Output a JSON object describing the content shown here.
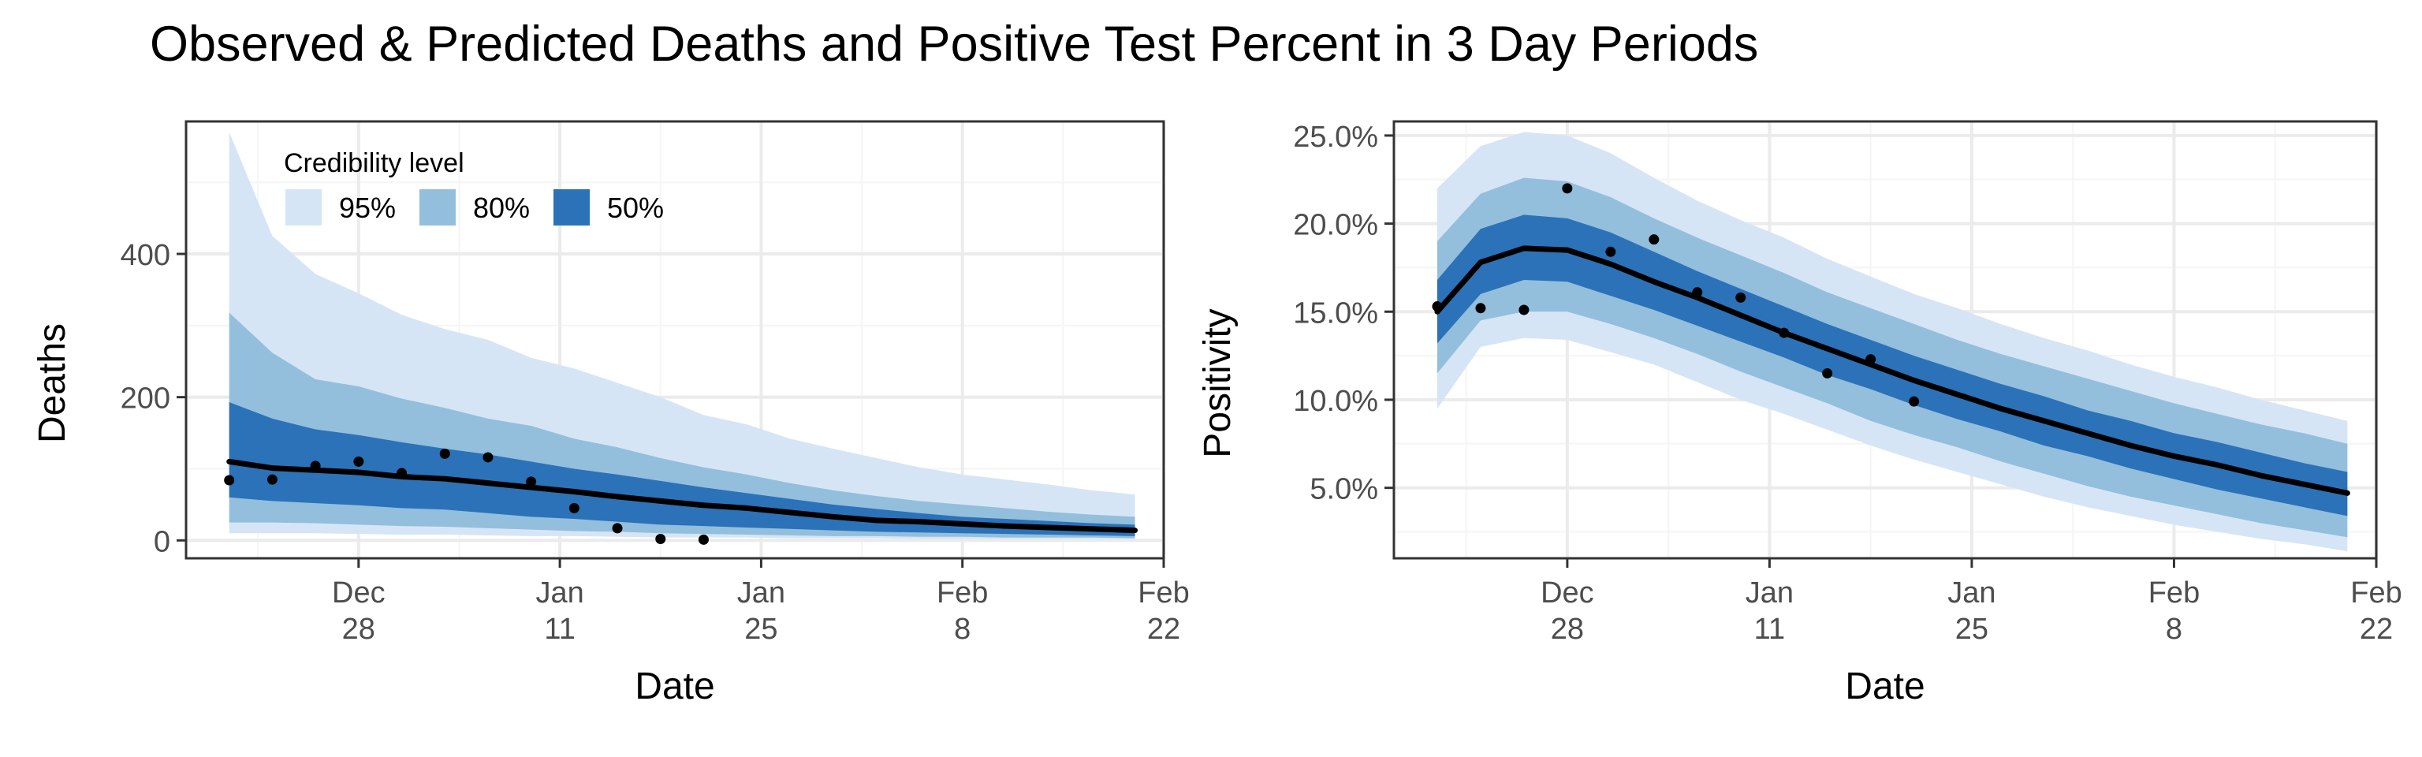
{
  "title": "Observed & Predicted Deaths and Positive Test Percent in 3 Day Periods",
  "colors": {
    "band95": "#d6e5f5",
    "band80": "#93bfdd",
    "band50": "#2c72b8",
    "median": "#000000",
    "points": "#000000",
    "grid_major": "#ebebeb",
    "grid_minor": "#f5f5f5",
    "border": "#333333"
  },
  "chart_data": [
    {
      "type": "area",
      "title": "",
      "xlabel": "Date",
      "ylabel": "Deaths",
      "x_type": "date",
      "xlim": [
        "2020-12-16",
        "2021-02-22"
      ],
      "ylim": [
        -25,
        585
      ],
      "x_ticks": [
        {
          "date": "2020-12-28",
          "line1": "Dec",
          "line2": "28"
        },
        {
          "date": "2021-01-11",
          "line1": "Jan",
          "line2": "11"
        },
        {
          "date": "2021-01-25",
          "line1": "Jan",
          "line2": "25"
        },
        {
          "date": "2021-02-08",
          "line1": "Feb",
          "line2": "8"
        },
        {
          "date": "2021-02-22",
          "line1": "Feb",
          "line2": "22"
        }
      ],
      "y_ticks": [
        0,
        200,
        400
      ],
      "y_tick_labels": [
        "0",
        "200",
        "400"
      ],
      "grid": true,
      "legend": {
        "title": "Credibility level",
        "placement": "top-left",
        "items": [
          {
            "label": "95%",
            "color": "#d6e5f5"
          },
          {
            "label": "80%",
            "color": "#93bfdd"
          },
          {
            "label": "50%",
            "color": "#2c72b8"
          }
        ]
      },
      "x": [
        "2020-12-19",
        "2020-12-22",
        "2020-12-25",
        "2020-12-28",
        "2020-12-31",
        "2021-01-03",
        "2021-01-06",
        "2021-01-09",
        "2021-01-12",
        "2021-01-15",
        "2021-01-18",
        "2021-01-21",
        "2021-01-24",
        "2021-01-27",
        "2021-01-30",
        "2021-02-02",
        "2021-02-05",
        "2021-02-08",
        "2021-02-11",
        "2021-02-14",
        "2021-02-17",
        "2021-02-20"
      ],
      "band95": {
        "lo": [
          10,
          10,
          10,
          9,
          8,
          8,
          7,
          6,
          6,
          5,
          4,
          4,
          4,
          3,
          3,
          3,
          2,
          2,
          2,
          2,
          2,
          2
        ],
        "hi": [
          570,
          425,
          372,
          345,
          315,
          295,
          280,
          255,
          240,
          220,
          200,
          175,
          162,
          142,
          128,
          115,
          102,
          92,
          85,
          78,
          70,
          64
        ]
      },
      "band80": {
        "lo": [
          25,
          25,
          24,
          22,
          20,
          19,
          17,
          15,
          13,
          12,
          10,
          9,
          8,
          7,
          6,
          6,
          5,
          5,
          4,
          4,
          4,
          3
        ],
        "hi": [
          318,
          262,
          225,
          215,
          198,
          185,
          170,
          160,
          142,
          130,
          115,
          102,
          92,
          80,
          70,
          62,
          55,
          50,
          45,
          40,
          36,
          33
        ]
      },
      "band50": {
        "lo": [
          60,
          55,
          52,
          49,
          45,
          43,
          38,
          33,
          30,
          26,
          22,
          20,
          18,
          16,
          14,
          12,
          11,
          10,
          9,
          8,
          7,
          6
        ],
        "hi": [
          193,
          170,
          155,
          147,
          137,
          128,
          120,
          110,
          100,
          92,
          83,
          74,
          66,
          58,
          50,
          44,
          38,
          33,
          30,
          27,
          24,
          22
        ]
      },
      "median": [
        110,
        101,
        98,
        95,
        89,
        86,
        80,
        74,
        68,
        61,
        55,
        49,
        45,
        39,
        33,
        28,
        26,
        23,
        20,
        18,
        16,
        14
      ],
      "observed": {
        "x": [
          "2020-12-19",
          "2020-12-22",
          "2020-12-25",
          "2020-12-28",
          "2020-12-31",
          "2021-01-03",
          "2021-01-06",
          "2021-01-09",
          "2021-01-12",
          "2021-01-15",
          "2021-01-18",
          "2021-01-21"
        ],
        "y": [
          84,
          85,
          104,
          110,
          94,
          121,
          116,
          82,
          45,
          17,
          2,
          1
        ]
      }
    },
    {
      "type": "area",
      "title": "",
      "xlabel": "Date",
      "ylabel": "Positivity",
      "x_type": "date",
      "xlim": [
        "2020-12-16",
        "2021-02-22"
      ],
      "ylim": [
        1.0,
        25.8
      ],
      "x_ticks": [
        {
          "date": "2020-12-28",
          "line1": "Dec",
          "line2": "28"
        },
        {
          "date": "2021-01-11",
          "line1": "Jan",
          "line2": "11"
        },
        {
          "date": "2021-01-25",
          "line1": "Jan",
          "line2": "25"
        },
        {
          "date": "2021-02-08",
          "line1": "Feb",
          "line2": "8"
        },
        {
          "date": "2021-02-22",
          "line1": "Feb",
          "line2": "22"
        }
      ],
      "y_ticks": [
        5,
        10,
        15,
        20,
        25
      ],
      "y_tick_labels": [
        "5.0%",
        "10.0%",
        "15.0%",
        "20.0%",
        "25.0%"
      ],
      "grid": true,
      "x": [
        "2020-12-19",
        "2020-12-22",
        "2020-12-25",
        "2020-12-28",
        "2020-12-31",
        "2021-01-03",
        "2021-01-06",
        "2021-01-09",
        "2021-01-12",
        "2021-01-15",
        "2021-01-18",
        "2021-01-21",
        "2021-01-24",
        "2021-01-27",
        "2021-01-30",
        "2021-02-02",
        "2021-02-05",
        "2021-02-08",
        "2021-02-11",
        "2021-02-14",
        "2021-02-17",
        "2021-02-20"
      ],
      "band95": {
        "lo": [
          9.5,
          13.0,
          13.5,
          13.4,
          12.7,
          12.0,
          11.0,
          10.0,
          9.2,
          8.3,
          7.4,
          6.6,
          5.9,
          5.2,
          4.5,
          3.9,
          3.4,
          2.9,
          2.5,
          2.1,
          1.8,
          1.4
        ],
        "hi": [
          22.0,
          24.4,
          25.2,
          25.0,
          24.0,
          22.6,
          21.3,
          20.2,
          19.2,
          18.0,
          17.0,
          16.0,
          15.2,
          14.3,
          13.5,
          12.8,
          12.0,
          11.3,
          10.7,
          10.0,
          9.4,
          8.8
        ]
      },
      "band80": {
        "lo": [
          11.5,
          14.5,
          15.0,
          15.0,
          14.3,
          13.5,
          12.6,
          11.6,
          10.7,
          9.8,
          8.8,
          8.0,
          7.3,
          6.5,
          5.8,
          5.1,
          4.5,
          4.0,
          3.5,
          3.0,
          2.6,
          2.2
        ],
        "hi": [
          19.0,
          21.7,
          22.6,
          22.4,
          21.5,
          20.3,
          19.2,
          18.2,
          17.2,
          16.1,
          15.2,
          14.3,
          13.4,
          12.6,
          11.9,
          11.2,
          10.5,
          9.8,
          9.2,
          8.6,
          8.1,
          7.5
        ]
      },
      "band50": {
        "lo": [
          13.2,
          16.0,
          16.8,
          16.7,
          15.9,
          15.1,
          14.2,
          13.3,
          12.4,
          11.4,
          10.6,
          9.7,
          8.9,
          8.2,
          7.4,
          6.8,
          6.1,
          5.5,
          4.9,
          4.4,
          3.9,
          3.4
        ],
        "hi": [
          16.8,
          19.7,
          20.5,
          20.3,
          19.5,
          18.4,
          17.3,
          16.3,
          15.3,
          14.3,
          13.4,
          12.5,
          11.7,
          10.9,
          10.2,
          9.4,
          8.8,
          8.1,
          7.6,
          7.0,
          6.4,
          5.9
        ]
      },
      "median": [
        15.0,
        17.8,
        18.6,
        18.5,
        17.7,
        16.7,
        15.8,
        14.8,
        13.8,
        12.9,
        12.0,
        11.1,
        10.3,
        9.5,
        8.8,
        8.1,
        7.4,
        6.8,
        6.3,
        5.7,
        5.2,
        4.7
      ],
      "observed": {
        "x": [
          "2020-12-19",
          "2020-12-22",
          "2020-12-25",
          "2020-12-28",
          "2020-12-31",
          "2021-01-03",
          "2021-01-06",
          "2021-01-09",
          "2021-01-12",
          "2021-01-15",
          "2021-01-18",
          "2021-01-21"
        ],
        "y": [
          15.3,
          15.2,
          15.1,
          22.0,
          18.4,
          19.1,
          16.1,
          15.8,
          13.8,
          11.5,
          12.3,
          9.9
        ]
      }
    }
  ]
}
